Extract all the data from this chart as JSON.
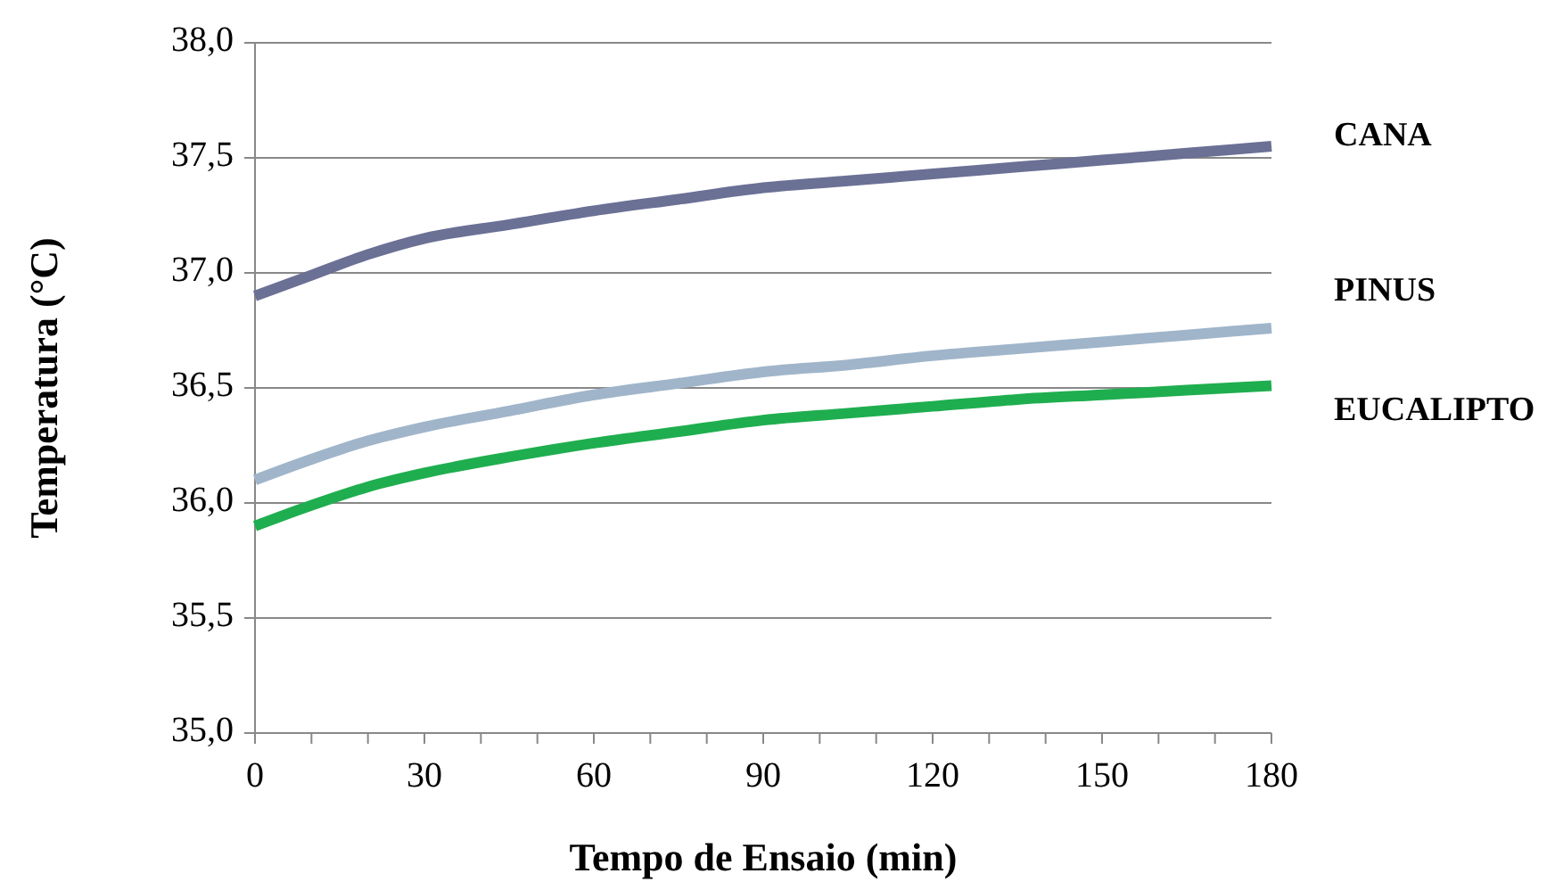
{
  "chart_data": {
    "type": "line",
    "xlabel": "Tempo de Ensaio (min)",
    "ylabel": "Temperatura (°C)",
    "x": [
      0,
      10,
      20,
      30,
      45,
      60,
      75,
      90,
      105,
      120,
      135,
      150,
      165,
      180
    ],
    "xlim": [
      0,
      180
    ],
    "xticks": [
      0,
      {
        "value": 10,
        "label": null
      },
      {
        "value": 20,
        "label": null
      },
      30,
      {
        "value": 40,
        "label": null
      },
      {
        "value": 50,
        "label": null
      },
      60,
      {
        "value": 70,
        "label": null
      },
      {
        "value": 80,
        "label": null
      },
      90,
      {
        "value": 100,
        "label": null
      },
      {
        "value": 110,
        "label": null
      },
      120,
      {
        "value": 130,
        "label": null
      },
      {
        "value": 140,
        "label": null
      },
      150,
      {
        "value": 160,
        "label": null
      },
      {
        "value": 170,
        "label": null
      },
      180
    ],
    "ylim": [
      35,
      38
    ],
    "yticks": [
      {
        "value": 35,
        "label": "35,0"
      },
      {
        "value": 35.5,
        "label": "35,5"
      },
      {
        "value": 36,
        "label": "36,0"
      },
      {
        "value": 36.5,
        "label": "36,5"
      },
      {
        "value": 37,
        "label": "37,0"
      },
      {
        "value": 37.5,
        "label": "37,5"
      },
      {
        "value": 38,
        "label": "38,0"
      }
    ],
    "grid": "y",
    "legend": false,
    "marker": "none",
    "line_style": "solid",
    "series": [
      {
        "name": "CANA",
        "color": "#6b7095",
        "values": [
          36.9,
          36.99,
          37.08,
          37.15,
          37.21,
          37.27,
          37.32,
          37.37,
          37.4,
          37.43,
          37.46,
          37.49,
          37.52,
          37.55
        ]
      },
      {
        "name": "PINUS",
        "color": "#a0b5ca",
        "values": [
          36.1,
          36.19,
          36.27,
          36.33,
          36.4,
          36.47,
          36.52,
          36.57,
          36.6,
          36.64,
          36.67,
          36.7,
          36.73,
          36.76
        ]
      },
      {
        "name": "EUCALIPTO",
        "color": "#1fae4f",
        "values": [
          35.9,
          35.99,
          36.07,
          36.13,
          36.2,
          36.26,
          36.31,
          36.36,
          36.39,
          36.42,
          36.45,
          36.47,
          36.49,
          36.51
        ]
      }
    ]
  }
}
